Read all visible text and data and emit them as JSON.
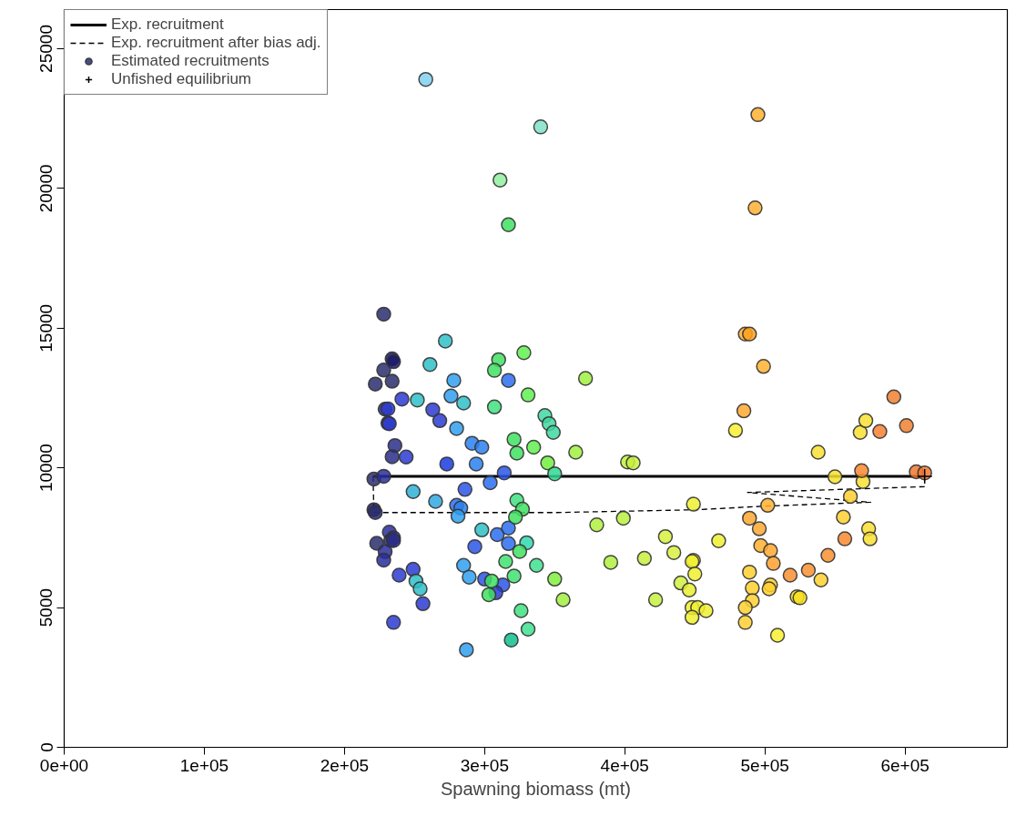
{
  "chart_data": {
    "type": "line",
    "xlabel": "Spawning biomass (mt)",
    "xlim": [
      0,
      673000
    ],
    "ylim": [
      0,
      26400
    ],
    "xticks": [
      {
        "value": 0,
        "label": "0e+00"
      },
      {
        "value": 100000,
        "label": "1e+05"
      },
      {
        "value": 200000,
        "label": "2e+05"
      },
      {
        "value": 300000,
        "label": "3e+05"
      },
      {
        "value": 400000,
        "label": "4e+05"
      },
      {
        "value": 500000,
        "label": "5e+05"
      },
      {
        "value": 600000,
        "label": "6e+05"
      }
    ],
    "yticks": [
      0,
      5000,
      10000,
      15000,
      20000,
      25000
    ],
    "grid": false,
    "legend": "top left",
    "series": [
      {
        "name": "Exp. recruitment",
        "line_style": "solid",
        "color": "#000000",
        "x": [
          220400,
          614000
        ],
        "values": [
          9700,
          9700
        ]
      },
      {
        "name": "Exp. recruitment after bias adj.",
        "type": "line",
        "line_style": "dashed",
        "color": "#000000",
        "x": [
          220400,
          221000,
          350000,
          450000,
          500600,
          575400,
          487600,
          615700
        ],
        "values": [
          9700,
          8400,
          8400,
          8500,
          8630,
          8770,
          9120,
          9330
        ]
      },
      {
        "name": "Estimated recruitments",
        "type": "scatter",
        "marker": "circle",
        "color": "#2a2e6e",
        "x": [
          228000,
          234000,
          235000,
          222000,
          228000,
          234000,
          229000,
          231000,
          236000,
          234000,
          221000,
          228000,
          221000,
          222000,
          232000,
          223000,
          233000,
          235000,
          229000,
          228000,
          235000,
          241000,
          231000,
          232000,
          244000,
          263000,
          268000,
          273000,
          286000,
          304000,
          314000,
          317000,
          291000,
          298000,
          294000,
          280000,
          283000,
          293000,
          309000,
          317000,
          317000,
          300000,
          313000,
          308000,
          256000,
          235000,
          239000,
          249000,
          278000,
          276000,
          280000,
          281000,
          285000,
          289000,
          287000,
          265000,
          249000,
          258000,
          272000,
          261000,
          252000,
          285000,
          298000,
          251000,
          254000,
          330000,
          319000,
          340000,
          310000,
          307000,
          328000,
          331000,
          307000,
          321000,
          323000,
          335000,
          345000,
          350000,
          323000,
          327000,
          322000,
          325000,
          315000,
          321000,
          305000,
          303000,
          337000,
          326000,
          331000,
          343000,
          346000,
          349000,
          311000,
          317000,
          372000,
          365000,
          350000,
          356000,
          380000,
          399000,
          390000,
          402000,
          406000,
          429000,
          435000,
          414000,
          422000,
          440000,
          449000,
          449000,
          448000,
          450000,
          446000,
          448000,
          452000,
          458000,
          448000,
          467000,
          479000,
          489000,
          491000,
          491000,
          486000,
          486000,
          509000,
          504000,
          503000,
          523000,
          525000,
          540000,
          538000,
          550000,
          570000,
          561000,
          556000,
          574000,
          575000,
          568000,
          572000,
          495000,
          493000,
          486000,
          489000,
          499000,
          485000,
          502000,
          489000,
          496000,
          497000,
          504000,
          506000,
          518000,
          531000,
          545000,
          557000,
          569000,
          582000,
          592000,
          601000,
          608000,
          614000
        ],
        "values": [
          15500,
          13900,
          13800,
          13000,
          13500,
          13100,
          12100,
          11600,
          10800,
          10400,
          9600,
          9700,
          8500,
          8400,
          7700,
          7300,
          7400,
          7500,
          7000,
          6700,
          7400,
          12460,
          12110,
          11580,
          10390,
          12080,
          11690,
          10140,
          9230,
          9470,
          9820,
          13130,
          10880,
          10740,
          10140,
          8660,
          8560,
          7180,
          7610,
          7290,
          7850,
          6020,
          5810,
          5530,
          5140,
          4470,
          6160,
          6370,
          13130,
          12570,
          11410,
          8270,
          6510,
          6090,
          3490,
          8800,
          9150,
          23900,
          14540,
          13700,
          12430,
          12320,
          7780,
          5950,
          5670,
          7320,
          3840,
          22200,
          13870,
          13490,
          14120,
          12610,
          12180,
          11020,
          10530,
          10740,
          10180,
          9790,
          8840,
          8520,
          8240,
          7010,
          6650,
          6130,
          5950,
          5460,
          6510,
          4890,
          4230,
          11870,
          11580,
          11270,
          20300,
          18700,
          13200,
          10560,
          6020,
          5280,
          7960,
          8200,
          6620,
          10210,
          10180,
          7540,
          6970,
          6760,
          5280,
          5880,
          8700,
          6690,
          6650,
          6200,
          5630,
          5000,
          5000,
          4890,
          4650,
          7390,
          11340,
          6270,
          5700,
          5250,
          5000,
          4470,
          4010,
          5810,
          5670,
          5390,
          5350,
          5990,
          10560,
          9680,
          9510,
          8980,
          8240,
          7820,
          7460,
          11270,
          11690,
          22640,
          19300,
          14790,
          14790,
          13630,
          12040,
          8660,
          8200,
          7820,
          7220,
          7040,
          6580,
          6160,
          6340,
          6870,
          7460,
          9900,
          11300,
          12540,
          11510,
          9860,
          9820
        ],
        "colors": [
          "#2a2e6e",
          "#1a1a66",
          "#1a1a66",
          "#2a2e6e",
          "#2a2e6e",
          "#2a2e6e",
          "#2a2e88",
          "#2a2e99",
          "#2a2e88",
          "#2a2e88",
          "#2a2e6e",
          "#2a2e99",
          "#1a1a66",
          "#2a2e6e",
          "#2a2e99",
          "#2a2e6e",
          "#2a2e6e",
          "#2a2e88",
          "#2a2e99",
          "#2a2e99",
          "#2a2e88",
          "#2b3bd0",
          "#2b3bd0",
          "#2b3bd0",
          "#2b3bd0",
          "#2b3bd0",
          "#2b3bd0",
          "#1a3be0",
          "#2b55e8",
          "#2b6ef0",
          "#2b55e8",
          "#2b6ef0",
          "#2b80f0",
          "#2b80f0",
          "#2b80f0",
          "#2b6ef0",
          "#2b80f0",
          "#2b55e8",
          "#2b6ef0",
          "#2b6ef0",
          "#2b6ef0",
          "#2b55e8",
          "#2b55e8",
          "#2b3bd0",
          "#2b3bd0",
          "#2b3bd0",
          "#2b3bd0",
          "#2b3bd0",
          "#30a0f0",
          "#30a0f0",
          "#30a0f0",
          "#30a0f0",
          "#30a0f0",
          "#30a0f0",
          "#30a0f0",
          "#30a8e0",
          "#30b0d8",
          "#80d0f0",
          "#30c0c8",
          "#30c0c8",
          "#30c0c8",
          "#30c0c8",
          "#30c0c8",
          "#30c0c8",
          "#30c0c8",
          "#30d8b0",
          "#10c090",
          "#80e0c8",
          "#40e060",
          "#40e060",
          "#60f050",
          "#60f050",
          "#40e080",
          "#40e060",
          "#40e060",
          "#60f050",
          "#70f040",
          "#30d890",
          "#40e080",
          "#40e060",
          "#40e060",
          "#40e060",
          "#40e070",
          "#40e070",
          "#40e060",
          "#40e060",
          "#40e090",
          "#40e080",
          "#40e090",
          "#40d8a0",
          "#40d8a0",
          "#40d8a0",
          "#90f0a0",
          "#40e060",
          "#a0f040",
          "#a0f040",
          "#80f040",
          "#a0f040",
          "#b0f040",
          "#b8f040",
          "#b0f040",
          "#c0f040",
          "#c8f040",
          "#d8f040",
          "#d8f040",
          "#c8f040",
          "#c8f040",
          "#d0f040",
          "#f0f030",
          "#f0f030",
          "#f0f030",
          "#f0f030",
          "#e8f030",
          "#f0f030",
          "#f0f030",
          "#f0f030",
          "#f0f030",
          "#f0f030",
          "#f8f030",
          "#ffd030",
          "#ffd030",
          "#ffd030",
          "#ffd030",
          "#ffd030",
          "#f8f030",
          "#ffd030",
          "#ffd030",
          "#f8e020",
          "#f8e020",
          "#ffd030",
          "#f8e030",
          "#f8e030",
          "#f8e030",
          "#ffd030",
          "#ffd030",
          "#f8e030",
          "#f8e030",
          "#f8e030",
          "#f8e030",
          "#ffb030",
          "#ffb030",
          "#ffb030",
          "#ffa020",
          "#ffb030",
          "#ffa830",
          "#ffb030",
          "#ffa830",
          "#ffa830",
          "#ffb030",
          "#ffa830",
          "#ffa030",
          "#f89030",
          "#f89030",
          "#f89030",
          "#f88830",
          "#f88830",
          "#f88030",
          "#f08030",
          "#f08030",
          "#f07830",
          "#f07830"
        ]
      },
      {
        "name": "Unfished equilibrium",
        "type": "scatter",
        "marker": "cross",
        "color": "#000000",
        "x": [
          614000
        ],
        "values": [
          9700
        ]
      }
    ]
  }
}
